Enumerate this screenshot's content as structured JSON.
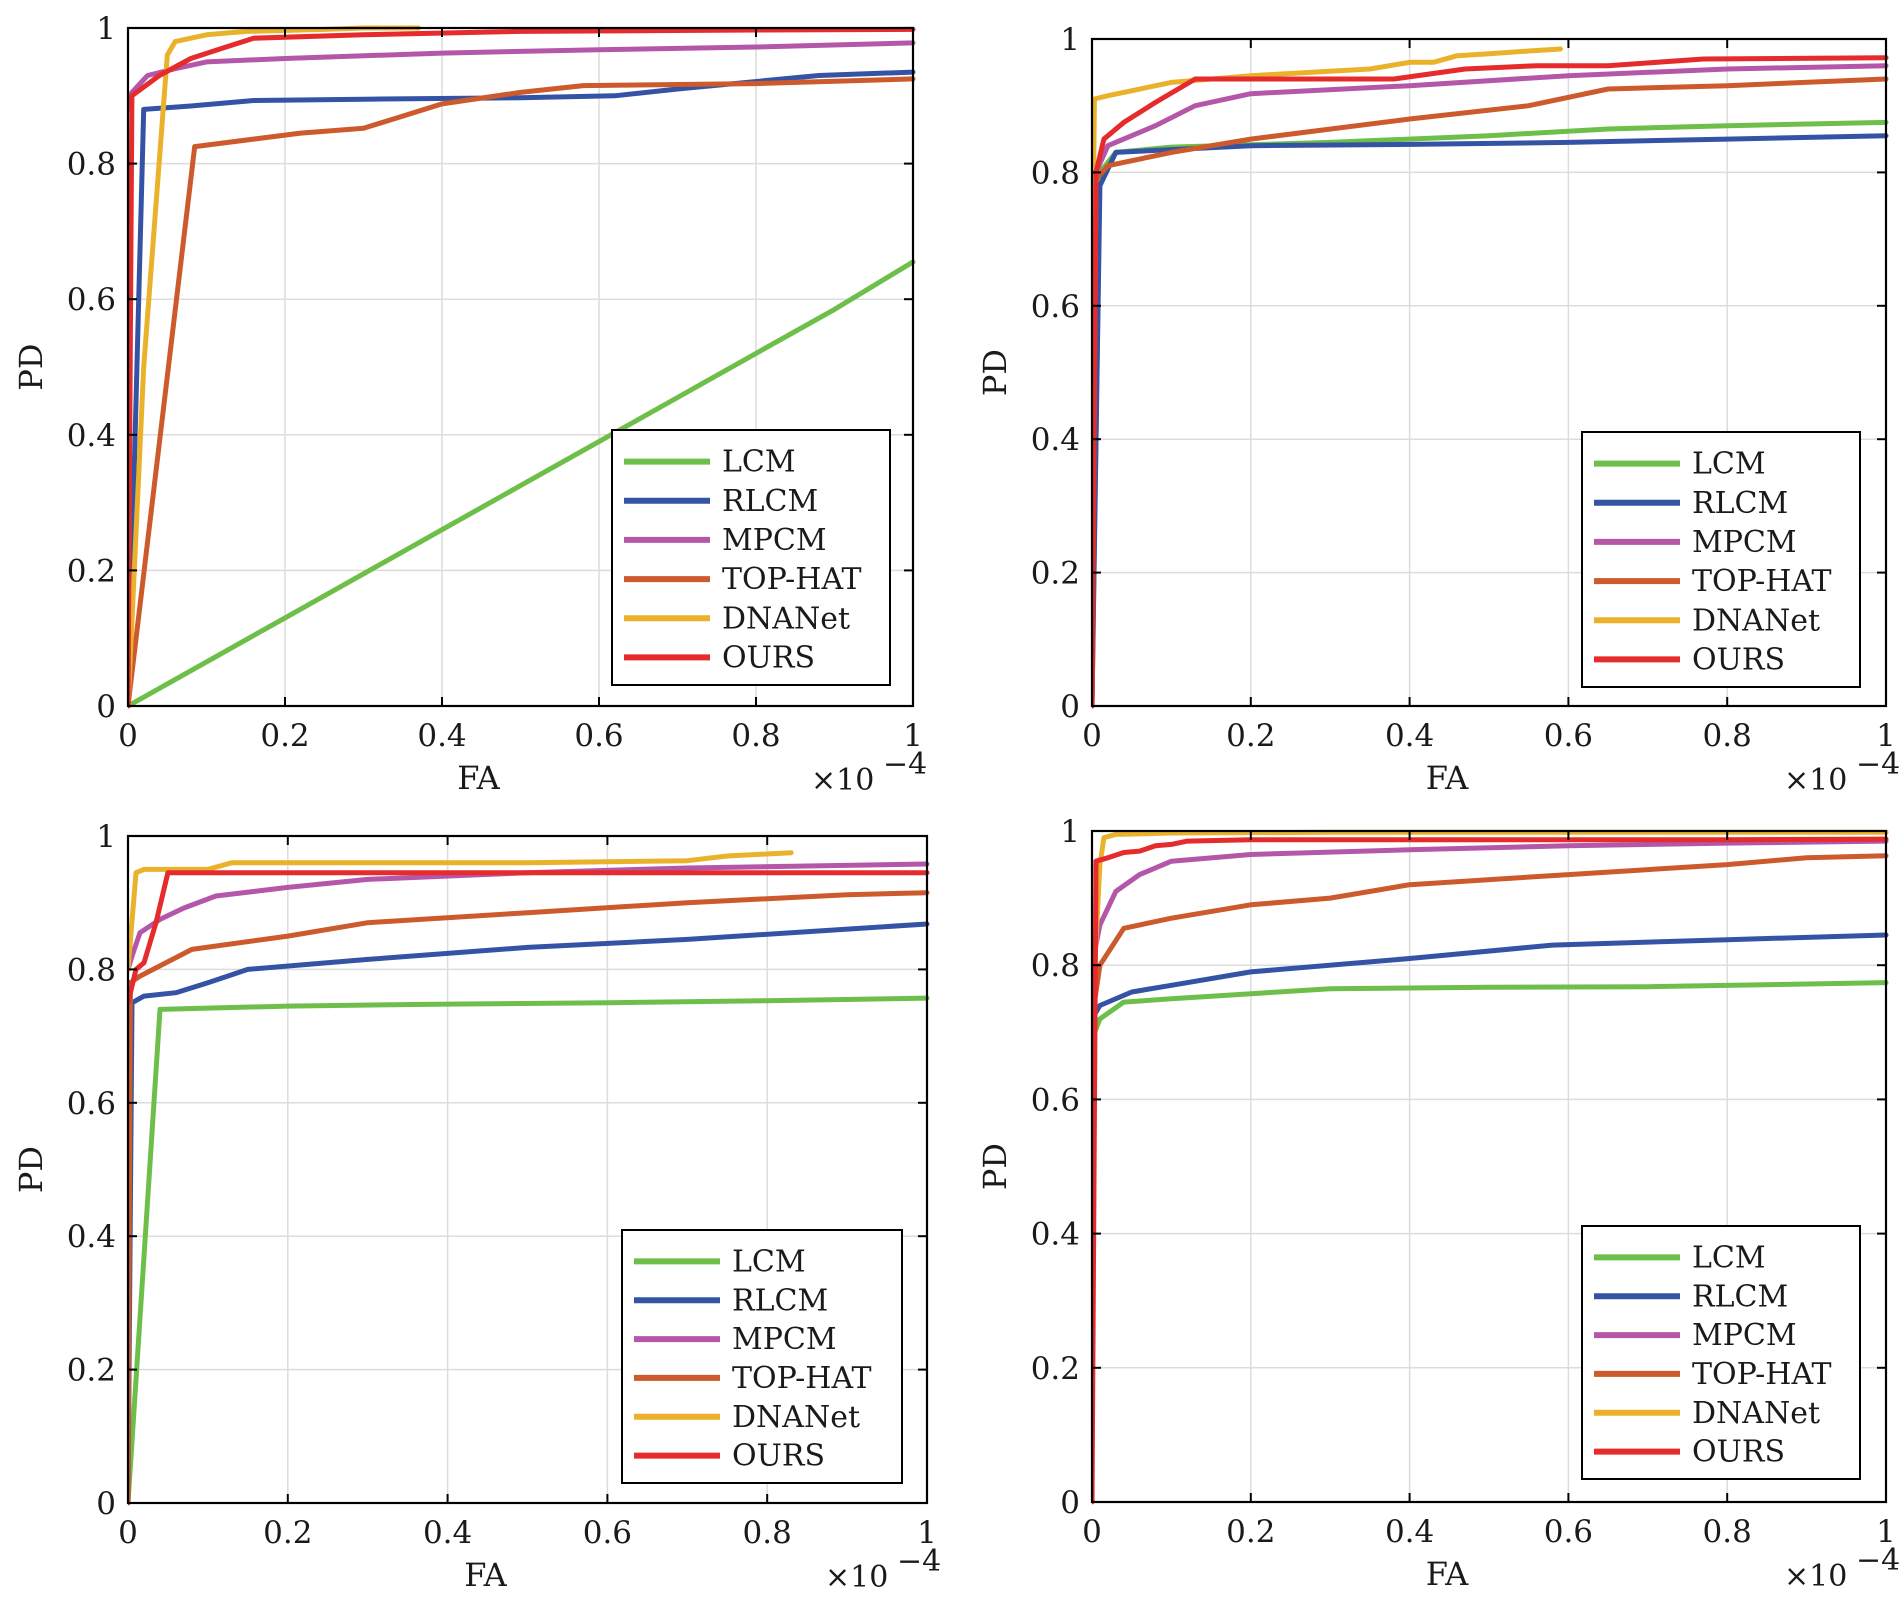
{
  "chart_data": [
    {
      "type": "line",
      "panel": "top-left",
      "xlabel": "FA",
      "ylabel": "PD",
      "x_multiplier": "×10",
      "x_multiplier_exp": "−4",
      "xlim": [
        0,
        1
      ],
      "ylim": [
        0,
        1
      ],
      "xticks": [
        0,
        0.2,
        0.4,
        0.6,
        0.8,
        1
      ],
      "yticks": [
        0,
        0.2,
        0.4,
        0.6,
        0.8,
        1
      ],
      "xtick_labels": [
        "0",
        "0.2",
        "0.4",
        "0.6",
        "0.8",
        "1"
      ],
      "ytick_labels": [
        "0",
        "0.2",
        "0.4",
        "0.6",
        "0.8",
        "1"
      ],
      "grid": true,
      "legend": "bottom-right",
      "series": [
        {
          "name": "LCM",
          "color": "#6dbf4a",
          "x": [
            0,
            0.1,
            0.2,
            0.3,
            0.4,
            0.5,
            0.6,
            0.7,
            0.8,
            0.9,
            1.0
          ],
          "y": [
            0,
            0.065,
            0.13,
            0.195,
            0.26,
            0.325,
            0.39,
            0.455,
            0.52,
            0.585,
            0.655
          ]
        },
        {
          "name": "RLCM",
          "color": "#3553a4",
          "x": [
            0,
            0.02,
            0.08,
            0.16,
            0.3,
            0.5,
            0.62,
            0.7,
            0.88,
            1.0
          ],
          "y": [
            0,
            0.88,
            0.885,
            0.893,
            0.895,
            0.897,
            0.9,
            0.91,
            0.93,
            0.935
          ]
        },
        {
          "name": "MPCM",
          "color": "#b557a9",
          "x": [
            0,
            0.005,
            0.025,
            0.06,
            0.1,
            0.2,
            0.4,
            0.6,
            0.8,
            1.0
          ],
          "y": [
            0.88,
            0.905,
            0.93,
            0.94,
            0.95,
            0.955,
            0.963,
            0.968,
            0.972,
            0.978
          ]
        },
        {
          "name": "TOP-HAT",
          "color": "#cc5a2c",
          "x": [
            0,
            0.085,
            0.22,
            0.3,
            0.4,
            0.5,
            0.58,
            0.8,
            1.0
          ],
          "y": [
            0,
            0.825,
            0.845,
            0.852,
            0.888,
            0.905,
            0.915,
            0.918,
            0.925
          ]
        },
        {
          "name": "DNANet",
          "color": "#eab22b",
          "x": [
            0,
            0.02,
            0.05,
            0.06,
            0.1,
            0.15,
            0.25,
            0.3,
            0.37
          ],
          "y": [
            0,
            0.5,
            0.96,
            0.98,
            0.99,
            0.995,
            0.998,
            1.0,
            1.0
          ]
        },
        {
          "name": "OURS",
          "color": "#e52b2b",
          "x": [
            0,
            0.005,
            0.04,
            0.08,
            0.12,
            0.16,
            0.3,
            0.5,
            0.8,
            1.0
          ],
          "y": [
            0,
            0.9,
            0.93,
            0.955,
            0.97,
            0.985,
            0.99,
            0.995,
            0.997,
            0.998
          ]
        }
      ]
    },
    {
      "type": "line",
      "panel": "top-right",
      "xlabel": "FA",
      "ylabel": "PD",
      "x_multiplier": "×10",
      "x_multiplier_exp": "−4",
      "xlim": [
        0,
        1
      ],
      "ylim": [
        0,
        1
      ],
      "xticks": [
        0,
        0.2,
        0.4,
        0.6,
        0.8,
        1
      ],
      "yticks": [
        0,
        0.2,
        0.4,
        0.6,
        0.8,
        1
      ],
      "xtick_labels": [
        "0",
        "0.2",
        "0.4",
        "0.6",
        "0.8",
        "1"
      ],
      "ytick_labels": [
        "0",
        "0.2",
        "0.4",
        "0.6",
        "0.8",
        "1"
      ],
      "grid": true,
      "legend": "bottom-right",
      "series": [
        {
          "name": "LCM",
          "color": "#6dbf4a",
          "x": [
            0,
            0.01,
            0.03,
            0.1,
            0.3,
            0.5,
            0.65,
            0.8,
            1.0
          ],
          "y": [
            0,
            0.8,
            0.83,
            0.838,
            0.845,
            0.855,
            0.865,
            0.87,
            0.875
          ]
        },
        {
          "name": "RLCM",
          "color": "#3553a4",
          "x": [
            0,
            0.01,
            0.03,
            0.2,
            0.4,
            0.6,
            0.8,
            1.0
          ],
          "y": [
            0,
            0.78,
            0.83,
            0.84,
            0.842,
            0.845,
            0.85,
            0.855
          ]
        },
        {
          "name": "MPCM",
          "color": "#b557a9",
          "x": [
            0,
            0.005,
            0.02,
            0.05,
            0.08,
            0.13,
            0.2,
            0.4,
            0.6,
            0.8,
            1.0
          ],
          "y": [
            0,
            0.8,
            0.84,
            0.855,
            0.87,
            0.9,
            0.918,
            0.93,
            0.945,
            0.955,
            0.96
          ]
        },
        {
          "name": "TOP-HAT",
          "color": "#cc5a2c",
          "x": [
            0,
            0.005,
            0.02,
            0.1,
            0.2,
            0.4,
            0.55,
            0.65,
            0.8,
            1.0
          ],
          "y": [
            0,
            0.79,
            0.81,
            0.83,
            0.85,
            0.88,
            0.9,
            0.925,
            0.93,
            0.94
          ]
        },
        {
          "name": "DNANet",
          "color": "#eab22b",
          "x": [
            0,
            0.003,
            0.02,
            0.1,
            0.2,
            0.35,
            0.4,
            0.43,
            0.46,
            0.5,
            0.55,
            0.59
          ],
          "y": [
            0.55,
            0.91,
            0.915,
            0.935,
            0.945,
            0.955,
            0.965,
            0.965,
            0.975,
            0.978,
            0.982,
            0.985
          ]
        },
        {
          "name": "OURS",
          "color": "#e52b2b",
          "x": [
            0,
            0.005,
            0.015,
            0.04,
            0.08,
            0.13,
            0.2,
            0.3,
            0.38,
            0.47,
            0.56,
            0.65,
            0.77,
            1.0
          ],
          "y": [
            0,
            0.8,
            0.85,
            0.875,
            0.905,
            0.94,
            0.94,
            0.94,
            0.94,
            0.955,
            0.96,
            0.96,
            0.97,
            0.972
          ]
        }
      ]
    },
    {
      "type": "line",
      "panel": "bottom-left",
      "xlabel": "FA",
      "ylabel": "PD",
      "x_multiplier": "×10",
      "x_multiplier_exp": "−4",
      "xlim": [
        0,
        1
      ],
      "ylim": [
        0,
        1
      ],
      "xticks": [
        0,
        0.2,
        0.4,
        0.6,
        0.8,
        1
      ],
      "yticks": [
        0,
        0.2,
        0.4,
        0.6,
        0.8,
        1
      ],
      "xtick_labels": [
        "0",
        "0.2",
        "0.4",
        "0.6",
        "0.8",
        "1"
      ],
      "ytick_labels": [
        "0",
        "0.2",
        "0.4",
        "0.6",
        "0.8",
        "1"
      ],
      "grid": true,
      "legend": "bottom-right",
      "series": [
        {
          "name": "LCM",
          "color": "#6dbf4a",
          "x": [
            0,
            0.04,
            0.1,
            0.2,
            0.4,
            0.6,
            0.8,
            1.0
          ],
          "y": [
            0,
            0.74,
            0.742,
            0.745,
            0.748,
            0.75,
            0.753,
            0.757
          ]
        },
        {
          "name": "RLCM",
          "color": "#3553a4",
          "x": [
            0,
            0.005,
            0.02,
            0.06,
            0.1,
            0.15,
            0.3,
            0.5,
            0.7,
            1.0
          ],
          "y": [
            0,
            0.75,
            0.76,
            0.765,
            0.78,
            0.8,
            0.815,
            0.833,
            0.845,
            0.868
          ]
        },
        {
          "name": "MPCM",
          "color": "#b557a9",
          "x": [
            0,
            0.005,
            0.015,
            0.04,
            0.07,
            0.11,
            0.2,
            0.3,
            0.5,
            0.7,
            1.0
          ],
          "y": [
            0.8,
            0.82,
            0.855,
            0.875,
            0.892,
            0.91,
            0.923,
            0.935,
            0.945,
            0.952,
            0.958
          ]
        },
        {
          "name": "TOP-HAT",
          "color": "#cc5a2c",
          "x": [
            0,
            0.003,
            0.015,
            0.08,
            0.2,
            0.3,
            0.5,
            0.7,
            0.9,
            1.0
          ],
          "y": [
            0,
            0.78,
            0.79,
            0.83,
            0.85,
            0.87,
            0.885,
            0.9,
            0.912,
            0.915
          ]
        },
        {
          "name": "DNANet",
          "color": "#eab22b",
          "x": [
            0,
            0.01,
            0.02,
            0.1,
            0.13,
            0.3,
            0.5,
            0.7,
            0.75,
            0.83
          ],
          "y": [
            0.8,
            0.945,
            0.95,
            0.95,
            0.96,
            0.96,
            0.96,
            0.963,
            0.97,
            0.975
          ]
        },
        {
          "name": "OURS",
          "color": "#e52b2b",
          "x": [
            0,
            0.01,
            0.02,
            0.035,
            0.05,
            0.2,
            0.5,
            0.8,
            1.0
          ],
          "y": [
            0.75,
            0.8,
            0.81,
            0.87,
            0.945,
            0.945,
            0.945,
            0.945,
            0.945
          ]
        }
      ]
    },
    {
      "type": "line",
      "panel": "bottom-right",
      "xlabel": "FA",
      "ylabel": "PD",
      "x_multiplier": "×10",
      "x_multiplier_exp": "−4",
      "xlim": [
        0,
        1
      ],
      "ylim": [
        0,
        1
      ],
      "xticks": [
        0,
        0.2,
        0.4,
        0.6,
        0.8,
        1
      ],
      "yticks": [
        0,
        0.2,
        0.4,
        0.6,
        0.8,
        1
      ],
      "xtick_labels": [
        "0",
        "0.2",
        "0.4",
        "0.6",
        "0.8",
        "1"
      ],
      "ytick_labels": [
        "0",
        "0.2",
        "0.4",
        "0.6",
        "0.8",
        "1"
      ],
      "grid": true,
      "legend": "bottom-right",
      "series": [
        {
          "name": "LCM",
          "color": "#6dbf4a",
          "x": [
            0,
            0.01,
            0.04,
            0.1,
            0.3,
            0.5,
            0.7,
            1.0
          ],
          "y": [
            0.69,
            0.72,
            0.745,
            0.75,
            0.765,
            0.767,
            0.768,
            0.774
          ]
        },
        {
          "name": "RLCM",
          "color": "#3553a4",
          "x": [
            0,
            0.01,
            0.05,
            0.1,
            0.2,
            0.4,
            0.58,
            0.8,
            1.0
          ],
          "y": [
            0.72,
            0.74,
            0.76,
            0.77,
            0.79,
            0.81,
            0.83,
            0.838,
            0.845
          ]
        },
        {
          "name": "MPCM",
          "color": "#b557a9",
          "x": [
            0,
            0.01,
            0.03,
            0.06,
            0.1,
            0.2,
            0.4,
            0.6,
            0.8,
            1.0
          ],
          "y": [
            0.8,
            0.86,
            0.91,
            0.935,
            0.955,
            0.965,
            0.972,
            0.978,
            0.982,
            0.985
          ]
        },
        {
          "name": "TOP-HAT",
          "color": "#cc5a2c",
          "x": [
            0,
            0.01,
            0.04,
            0.1,
            0.2,
            0.3,
            0.4,
            0.6,
            0.8,
            0.9,
            1.0
          ],
          "y": [
            0.72,
            0.8,
            0.855,
            0.87,
            0.89,
            0.9,
            0.92,
            0.935,
            0.95,
            0.96,
            0.963
          ]
        },
        {
          "name": "DNANet",
          "color": "#eab22b",
          "x": [
            0,
            0.01,
            0.015,
            0.03,
            0.1,
            0.3,
            0.6,
            1.0
          ],
          "y": [
            0.72,
            0.95,
            0.99,
            0.995,
            0.997,
            0.998,
            0.998,
            0.998
          ]
        },
        {
          "name": "OURS",
          "color": "#e52b2b",
          "x": [
            0,
            0.005,
            0.02,
            0.04,
            0.06,
            0.08,
            0.1,
            0.12,
            0.2,
            0.5,
            0.8,
            1.0
          ],
          "y": [
            0,
            0.955,
            0.96,
            0.968,
            0.97,
            0.978,
            0.98,
            0.985,
            0.987,
            0.987,
            0.987,
            0.988
          ]
        }
      ]
    }
  ]
}
